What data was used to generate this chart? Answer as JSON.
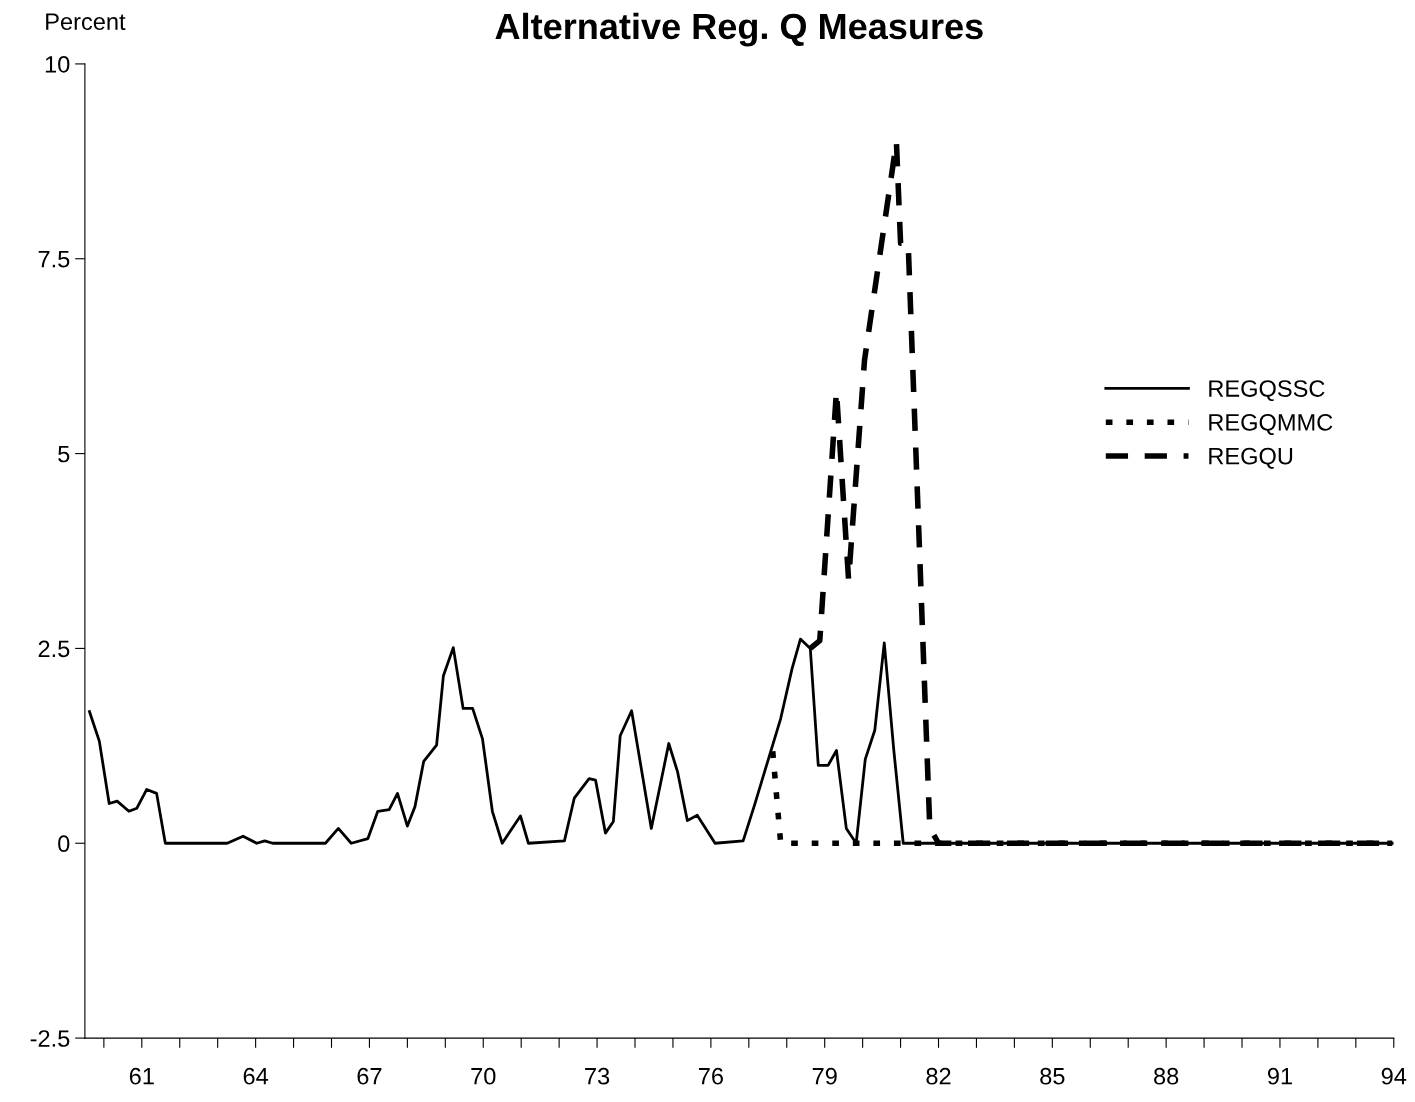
{
  "chart_data": {
    "type": "line",
    "title": "Alternative Reg. Q Measures",
    "ylabel": "Percent",
    "xlim": [
      59.5,
      94
    ],
    "ylim": [
      -2.5,
      10
    ],
    "yticks": [
      10,
      7.5,
      5,
      2.5,
      0,
      {
        "value": -2.5,
        "label": "-2.5"
      }
    ],
    "xticks": [
      {
        "value": 60,
        "label": null
      },
      {
        "value": 61,
        "label": "61"
      },
      {
        "value": 62,
        "label": null
      },
      {
        "value": 63,
        "label": null
      },
      {
        "value": 64,
        "label": "64"
      },
      {
        "value": 65,
        "label": null
      },
      {
        "value": 66,
        "label": null
      },
      {
        "value": 67,
        "label": "67"
      },
      {
        "value": 68,
        "label": null
      },
      {
        "value": 69,
        "label": null
      },
      {
        "value": 70,
        "label": "70"
      },
      {
        "value": 71,
        "label": null
      },
      {
        "value": 72,
        "label": null
      },
      {
        "value": 73,
        "label": "73"
      },
      {
        "value": 74,
        "label": null
      },
      {
        "value": 75,
        "label": null
      },
      {
        "value": 76,
        "label": "76"
      },
      {
        "value": 77,
        "label": null
      },
      {
        "value": 78,
        "label": null
      },
      {
        "value": 79,
        "label": "79"
      },
      {
        "value": 80,
        "label": null
      },
      {
        "value": 81,
        "label": null
      },
      {
        "value": 82,
        "label": "82"
      },
      {
        "value": 83,
        "label": null
      },
      {
        "value": 84,
        "label": null
      },
      {
        "value": 85,
        "label": "85"
      },
      {
        "value": 86,
        "label": null
      },
      {
        "value": 87,
        "label": null
      },
      {
        "value": 88,
        "label": "88"
      },
      {
        "value": 89,
        "label": null
      },
      {
        "value": 90,
        "label": null
      },
      {
        "value": 91,
        "label": "91"
      },
      {
        "value": 92,
        "label": null
      },
      {
        "value": 93,
        "label": null
      },
      {
        "value": 94,
        "label": "94"
      }
    ],
    "grid": false,
    "legend": "right",
    "marker": "none",
    "series": [
      {
        "name": "REGQSSC",
        "color": "#000000",
        "line_style": "solid",
        "x": [
          59.62,
          59.88,
          60.14,
          60.35,
          60.66,
          60.87,
          61.13,
          61.39,
          61.62,
          63.25,
          63.67,
          64.03,
          64.24,
          64.45,
          65.84,
          66.18,
          66.52,
          66.96,
          67.22,
          67.52,
          67.74,
          68.0,
          68.2,
          68.43,
          68.77,
          68.95,
          69.21,
          69.47,
          69.72,
          69.98,
          70.24,
          70.5,
          70.98,
          71.19,
          72.14,
          72.4,
          72.79,
          72.96,
          73.22,
          73.43,
          73.61,
          73.91,
          74.21,
          74.43,
          74.89,
          75.12,
          75.38,
          75.64,
          76.11,
          76.85,
          77.15,
          77.84,
          78.14,
          78.36,
          78.62,
          78.83,
          79.09,
          79.31,
          79.57,
          79.83,
          80.07,
          80.32,
          80.57,
          80.82,
          81.07,
          93.96
        ],
        "values": [
          1.69,
          1.31,
          0.51,
          0.54,
          0.41,
          0.45,
          0.69,
          0.64,
          0,
          0,
          0.09,
          0,
          0.03,
          0,
          0,
          0.19,
          0,
          0.06,
          0.41,
          0.43,
          0.64,
          0.22,
          0.47,
          1.05,
          1.26,
          2.15,
          2.51,
          1.73,
          1.73,
          1.34,
          0.41,
          0,
          0.35,
          0,
          0.03,
          0.58,
          0.83,
          0.81,
          0.13,
          0.28,
          1.38,
          1.7,
          0.83,
          0.19,
          1.28,
          0.92,
          0.29,
          0.36,
          0,
          0.03,
          0.49,
          1.6,
          2.24,
          2.62,
          2.5,
          1.0,
          1.0,
          1.19,
          0.19,
          0,
          1.08,
          1.45,
          2.57,
          1.2,
          0,
          0
        ]
      },
      {
        "name": "REGQMMC",
        "color": "#000000",
        "line_style": "dotted",
        "x": [
          77.63,
          77.84,
          81.07,
          93.96
        ],
        "values": [
          1.18,
          0,
          0,
          0
        ]
      },
      {
        "name": "REGQU",
        "color": "#000000",
        "line_style": "dashed",
        "x": [
          78.62,
          78.87,
          79.31,
          79.63,
          80.05,
          80.89,
          81.0,
          81.2,
          81.77,
          82.0,
          93.96
        ],
        "values": [
          2.5,
          2.6,
          5.8,
          3.38,
          6.2,
          9.0,
          7.7,
          7.7,
          0.2,
          0,
          0
        ]
      }
    ]
  }
}
